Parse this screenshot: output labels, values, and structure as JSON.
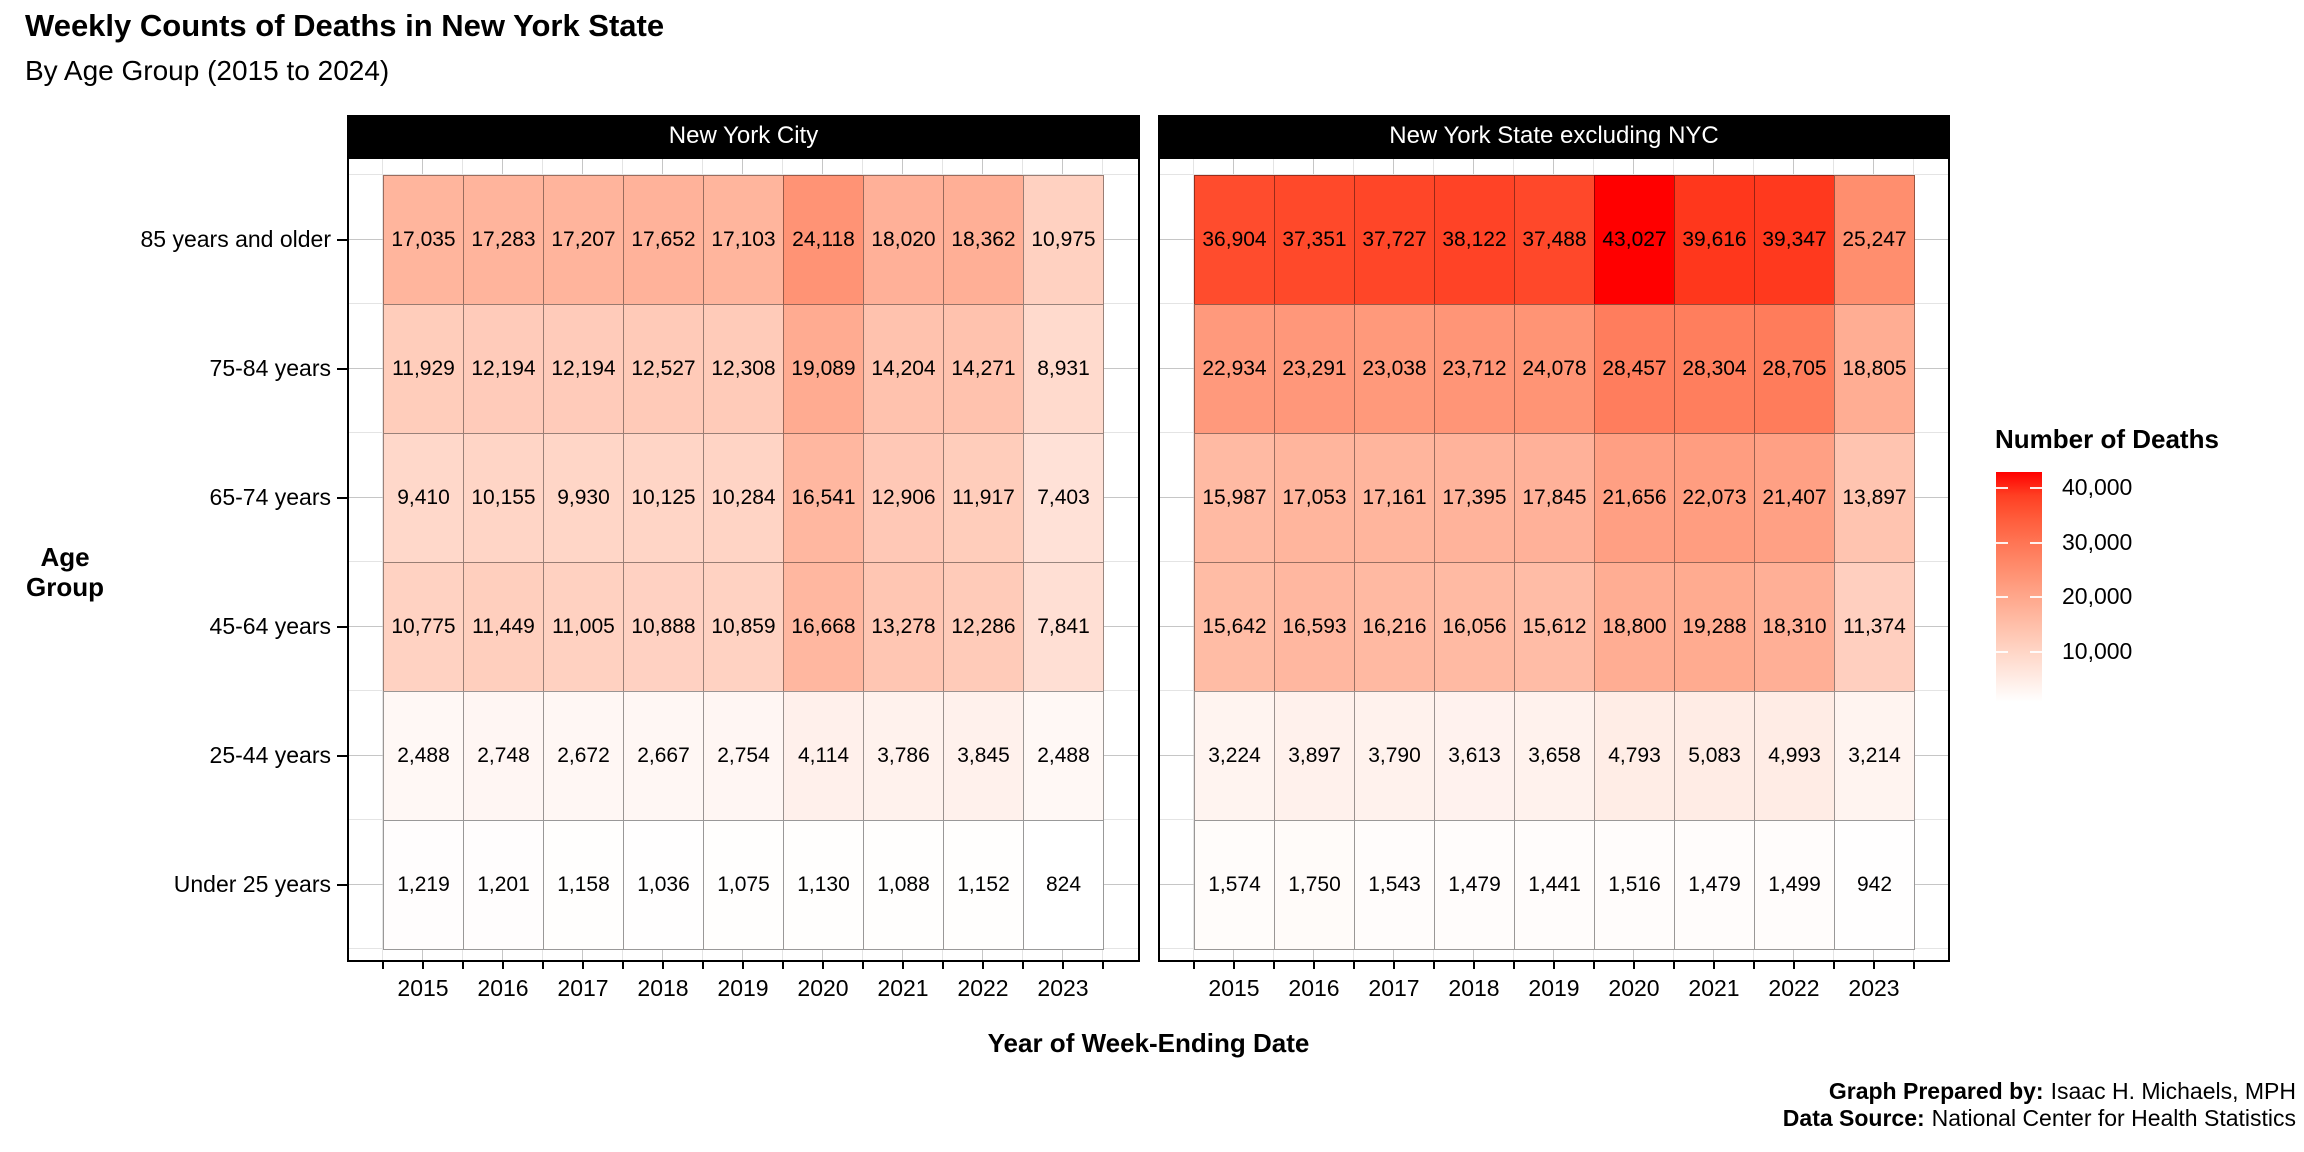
{
  "title": "Weekly Counts of Deaths in New York State",
  "subtitle": "By Age Group (2015 to 2024)",
  "axes": {
    "x_title": "Year of Week-Ending Date",
    "y_title_line1": "Age",
    "y_title_line2": "Group"
  },
  "legend": {
    "title": "Number of Deaths",
    "tick_values": [
      40000,
      30000,
      20000,
      10000
    ]
  },
  "footer": {
    "prepared_label": "Graph Prepared by:",
    "prepared_value": "Isaac H. Michaels, MPH",
    "source_label": "Data Source:",
    "source_value": "National Center for Health Statistics"
  },
  "chart_data": {
    "type": "heatmap",
    "x": [
      "2015",
      "2016",
      "2017",
      "2018",
      "2019",
      "2020",
      "2021",
      "2022",
      "2023"
    ],
    "y": [
      "85 years and older",
      "75-84 years",
      "65-74 years",
      "45-64 years",
      "25-44 years",
      "Under 25 years"
    ],
    "fill": {
      "low": "#FFFFFF",
      "high": "#FF0000",
      "domain": [
        824,
        43027
      ]
    },
    "legend_ticks": [
      10000,
      20000,
      30000,
      40000
    ],
    "panels": [
      {
        "label": "New York City",
        "values": [
          [
            17035,
            17283,
            17207,
            17652,
            17103,
            24118,
            18020,
            18362,
            10975
          ],
          [
            11929,
            12194,
            12194,
            12527,
            12308,
            19089,
            14204,
            14271,
            8931
          ],
          [
            9410,
            10155,
            9930,
            10125,
            10284,
            16541,
            12906,
            11917,
            7403
          ],
          [
            10775,
            11449,
            11005,
            10888,
            10859,
            16668,
            13278,
            12286,
            7841
          ],
          [
            2488,
            2748,
            2672,
            2667,
            2754,
            4114,
            3786,
            3845,
            2488
          ],
          [
            1219,
            1201,
            1158,
            1036,
            1075,
            1130,
            1088,
            1152,
            824
          ]
        ]
      },
      {
        "label": "New York State excluding NYC",
        "values": [
          [
            36904,
            37351,
            37727,
            38122,
            37488,
            43027,
            39616,
            39347,
            25247
          ],
          [
            22934,
            23291,
            23038,
            23712,
            24078,
            28457,
            28304,
            28705,
            18805
          ],
          [
            15987,
            17053,
            17161,
            17395,
            17845,
            21656,
            22073,
            21407,
            13897
          ],
          [
            15642,
            16593,
            16216,
            16056,
            15612,
            18800,
            19288,
            18310,
            11374
          ],
          [
            3224,
            3897,
            3790,
            3613,
            3658,
            4793,
            5083,
            4993,
            3214
          ],
          [
            1574,
            1750,
            1543,
            1479,
            1441,
            1516,
            1479,
            1499,
            942
          ]
        ]
      }
    ]
  }
}
